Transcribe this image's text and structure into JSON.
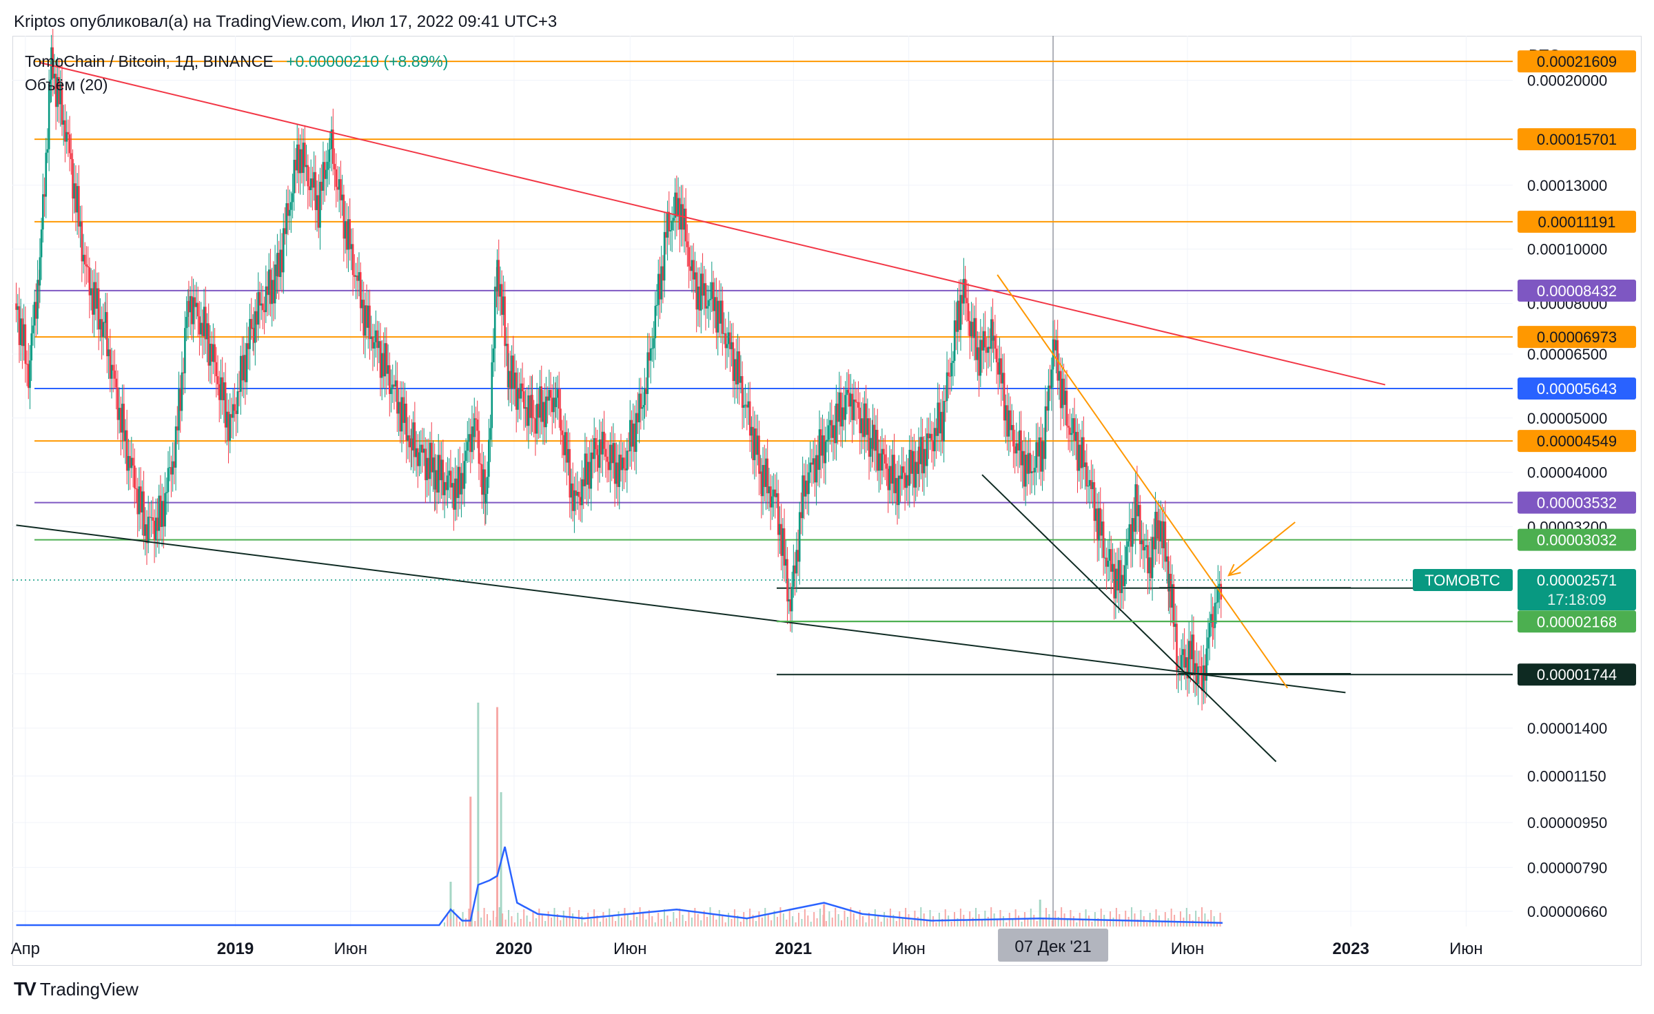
{
  "header": {
    "publisher_line": "Kriptos опубликовал(а) на TradingView.com, Июл 17, 2022 09:41 UTC+3"
  },
  "legend": {
    "symbol_line": "TomoChain / Bitcoin, 1Д, BINANCE",
    "change": "+0.00000210 (+8.89%)",
    "volume_label": "Объём (20)"
  },
  "footer": {
    "brand": "TradingView"
  },
  "colors": {
    "orange": "#ff9800",
    "purple": "#7e57c2",
    "blue": "#2962ff",
    "green": "#4caf50",
    "dark": "#0e2a22",
    "teal": "#089981",
    "red_trend": "#f23645",
    "up": "#089981",
    "down": "#f23645"
  },
  "chart_data": {
    "type": "candlestick",
    "symbol": "TOMOBTC",
    "price_axis_unit": "BTC",
    "y_scale": "log",
    "ylim": [
      6.2e-06,
      0.00024
    ],
    "x_range": [
      "2018-03-15",
      "2023-08-01"
    ],
    "crosshair_date_label": "07 Дек '21",
    "crosshair_date": "2021-12-07",
    "x_ticks": [
      {
        "label": "Апр",
        "date": "2018-04-01"
      },
      {
        "label": "2019",
        "date": "2019-01-01"
      },
      {
        "label": "Июн",
        "date": "2019-06-01"
      },
      {
        "label": "2020",
        "date": "2020-01-01"
      },
      {
        "label": "Июн",
        "date": "2020-06-01"
      },
      {
        "label": "2021",
        "date": "2021-01-01"
      },
      {
        "label": "Июн",
        "date": "2021-06-01"
      },
      {
        "label": "Июн",
        "date": "2022-06-01"
      },
      {
        "label": "2023",
        "date": "2023-01-01"
      },
      {
        "label": "Июн",
        "date": "2023-06-01"
      }
    ],
    "y_ticks": [
      "0.00020000",
      "0.00013000",
      "0.00010000",
      "0.00008000",
      "0.00006500",
      "0.00005000",
      "0.00004000",
      "0.00003200",
      "0.00001750",
      "0.00001400",
      "0.00001150",
      "0.00000950",
      "0.00000790",
      "0.00000660"
    ],
    "horizontal_levels": [
      {
        "price": "0.00021609",
        "color": "orange"
      },
      {
        "price": "0.00015701",
        "color": "orange"
      },
      {
        "price": "0.00011191",
        "color": "orange"
      },
      {
        "price": "0.00008432",
        "color": "purple"
      },
      {
        "price": "0.00006973",
        "color": "orange"
      },
      {
        "price": "0.00005643",
        "color": "blue"
      },
      {
        "price": "0.00004549",
        "color": "orange"
      },
      {
        "price": "0.00003532",
        "color": "purple"
      },
      {
        "price": "0.00003032",
        "color": "green"
      },
      {
        "price": "0.00002487",
        "color": "dark",
        "short": true
      },
      {
        "price": "0.00002168",
        "color": "green",
        "short": true
      },
      {
        "price": "0.00001744",
        "color": "dark",
        "short": true
      }
    ],
    "last_price": {
      "symbol_tag": "TOMOBTC",
      "price": "0.00002571",
      "countdown": "17:18:09"
    },
    "trendlines": [
      {
        "color": "red_trend",
        "from": [
          "2018-04-20",
          0.000215
        ],
        "to": [
          "2023-02-15",
          5.73e-05
        ]
      },
      {
        "color": "dark",
        "from": [
          "2018-03-20",
          3.22e-05
        ],
        "to": [
          "2022-12-25",
          1.62e-05
        ]
      },
      {
        "color": "orange",
        "from": [
          "2021-09-25",
          9e-05
        ],
        "to": [
          "2022-10-10",
          1.65e-05
        ]
      },
      {
        "color": "dark",
        "from": [
          "2021-09-05",
          3.96e-05
        ],
        "to": [
          "2022-09-25",
          1.22e-05
        ]
      },
      {
        "color": "green",
        "from": [
          "2020-12-10",
          2.17e-05
        ],
        "to": [
          "2023-01-01",
          2.17e-05
        ]
      },
      {
        "color": "dark",
        "from": [
          "2022-04-25",
          2.49e-05
        ],
        "to": [
          "2023-01-01",
          2.49e-05
        ]
      },
      {
        "color": "dark",
        "from": [
          "2022-05-20",
          1.75e-05
        ],
        "to": [
          "2023-01-01",
          1.75e-05
        ]
      }
    ],
    "arrow": {
      "color": "orange",
      "from": [
        "2022-10-20",
        3.26e-05
      ],
      "to": [
        "2022-07-25",
        2.62e-05
      ]
    },
    "price_path": [
      [
        "2018-03-20",
        8e-05
      ],
      [
        "2018-04-05",
        6e-05
      ],
      [
        "2018-04-20",
        9.5e-05
      ],
      [
        "2018-05-05",
        0.000215
      ],
      [
        "2018-05-25",
        0.00016
      ],
      [
        "2018-06-20",
        9e-05
      ],
      [
        "2018-07-15",
        7e-05
      ],
      [
        "2018-08-10",
        4.5e-05
      ],
      [
        "2018-09-05",
        3.2e-05
      ],
      [
        "2018-09-25",
        3.3e-05
      ],
      [
        "2018-10-15",
        4.5e-05
      ],
      [
        "2018-11-01",
        8.2e-05
      ],
      [
        "2018-11-25",
        7e-05
      ],
      [
        "2018-12-25",
        4.8e-05
      ],
      [
        "2019-01-25",
        7.5e-05
      ],
      [
        "2019-02-25",
        9e-05
      ],
      [
        "2019-03-25",
        0.00015
      ],
      [
        "2019-04-20",
        0.00012
      ],
      [
        "2019-05-05",
        0.000155
      ],
      [
        "2019-05-25",
        0.00011
      ],
      [
        "2019-06-20",
        7.5e-05
      ],
      [
        "2019-07-20",
        6e-05
      ],
      [
        "2019-08-20",
        4.5e-05
      ],
      [
        "2019-09-20",
        4e-05
      ],
      [
        "2019-10-20",
        3.7e-05
      ],
      [
        "2019-11-10",
        5e-05
      ],
      [
        "2019-11-25",
        3.5e-05
      ],
      [
        "2019-12-10",
        9.5e-05
      ],
      [
        "2019-12-25",
        6e-05
      ],
      [
        "2020-01-25",
        5e-05
      ],
      [
        "2020-02-25",
        5.5e-05
      ],
      [
        "2020-03-20",
        3.5e-05
      ],
      [
        "2020-04-20",
        4.5e-05
      ],
      [
        "2020-05-20",
        4e-05
      ],
      [
        "2020-06-20",
        5.5e-05
      ],
      [
        "2020-07-20",
        0.00011
      ],
      [
        "2020-08-05",
        0.00012
      ],
      [
        "2020-08-25",
        8.5e-05
      ],
      [
        "2020-09-20",
        8e-05
      ],
      [
        "2020-10-20",
        6e-05
      ],
      [
        "2020-11-20",
        4e-05
      ],
      [
        "2020-12-10",
        3.5e-05
      ],
      [
        "2020-12-28",
        2.3e-05
      ],
      [
        "2021-01-15",
        3.8e-05
      ],
      [
        "2021-02-10",
        4.5e-05
      ],
      [
        "2021-03-15",
        5.5e-05
      ],
      [
        "2021-04-15",
        4.5e-05
      ],
      [
        "2021-05-15",
        3.8e-05
      ],
      [
        "2021-06-15",
        4.2e-05
      ],
      [
        "2021-07-15",
        5e-05
      ],
      [
        "2021-08-10",
        8.5e-05
      ],
      [
        "2021-08-30",
        6.5e-05
      ],
      [
        "2021-09-20",
        7e-05
      ],
      [
        "2021-10-10",
        4.8e-05
      ],
      [
        "2021-11-05",
        4e-05
      ],
      [
        "2021-11-25",
        4.5e-05
      ],
      [
        "2021-12-07",
        6.8e-05
      ],
      [
        "2021-12-25",
        5e-05
      ],
      [
        "2022-01-20",
        4e-05
      ],
      [
        "2022-02-15",
        2.8e-05
      ],
      [
        "2022-03-05",
        2.5e-05
      ],
      [
        "2022-03-25",
        3.5e-05
      ],
      [
        "2022-04-10",
        2.7e-05
      ],
      [
        "2022-04-25",
        3.3e-05
      ],
      [
        "2022-05-08",
        2.6e-05
      ],
      [
        "2022-05-20",
        1.8e-05
      ],
      [
        "2022-06-05",
        1.9e-05
      ],
      [
        "2022-06-20",
        1.7e-05
      ],
      [
        "2022-07-05",
        2.3e-05
      ],
      [
        "2022-07-17",
        2.5e-05
      ]
    ],
    "volume_spikes": [
      {
        "date": "2019-10-10",
        "rel": 0.2
      },
      {
        "date": "2019-11-05",
        "rel": 0.58
      },
      {
        "date": "2019-11-15",
        "rel": 1.0
      },
      {
        "date": "2019-12-10",
        "rel": 0.98
      },
      {
        "date": "2019-12-15",
        "rel": 0.6
      },
      {
        "date": "2021-02-10",
        "rel": 0.1
      },
      {
        "date": "2021-11-20",
        "rel": 0.12
      }
    ],
    "volume_ma_path": [
      [
        "2018-03-20",
        0.0
      ],
      [
        "2019-09-25",
        0.0
      ],
      [
        "2019-10-10",
        0.07
      ],
      [
        "2019-10-25",
        0.02
      ],
      [
        "2019-11-05",
        0.02
      ],
      [
        "2019-11-15",
        0.18
      ],
      [
        "2019-11-30",
        0.2
      ],
      [
        "2019-12-10",
        0.22
      ],
      [
        "2019-12-20",
        0.35
      ],
      [
        "2020-01-05",
        0.1
      ],
      [
        "2020-02-01",
        0.05
      ],
      [
        "2020-04-01",
        0.03
      ],
      [
        "2020-08-01",
        0.07
      ],
      [
        "2020-11-01",
        0.03
      ],
      [
        "2021-02-10",
        0.1
      ],
      [
        "2021-04-01",
        0.05
      ],
      [
        "2021-07-01",
        0.02
      ],
      [
        "2021-11-20",
        0.03
      ],
      [
        "2022-07-17",
        0.01
      ]
    ]
  }
}
